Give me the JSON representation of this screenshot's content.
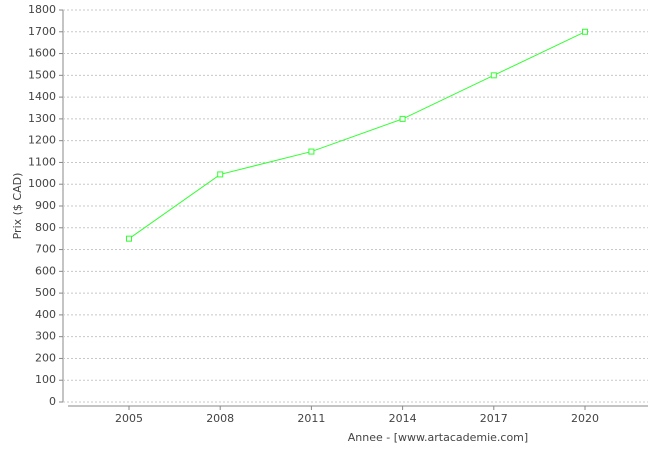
{
  "chart_data": {
    "type": "line",
    "x_label": "Annee - [www.artacademie.com]",
    "y_label": "Prix ($ CAD)",
    "categories": [
      "2005",
      "2008",
      "2011",
      "2014",
      "2017",
      "2020"
    ],
    "series": [
      {
        "name": "Prix",
        "color": "#33ff33",
        "values": [
          750,
          1045,
          1150,
          1300,
          1500,
          1700
        ]
      }
    ],
    "ylim": [
      0,
      1800
    ],
    "yticks": [
      0,
      100,
      200,
      300,
      400,
      500,
      600,
      700,
      800,
      900,
      1000,
      1100,
      1200,
      1300,
      1400,
      1500,
      1600,
      1700,
      1800
    ],
    "grid": true
  }
}
